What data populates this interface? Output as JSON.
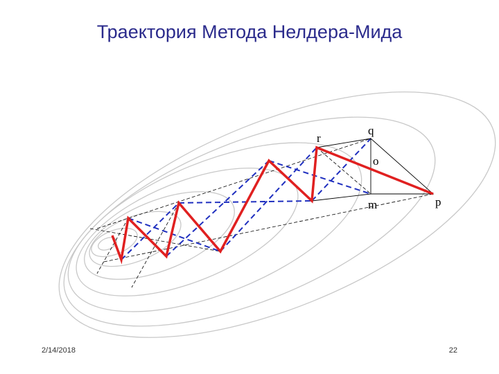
{
  "header": {
    "title": "Траектория Метода Нелдера-Мида"
  },
  "diagram": {
    "labels": {
      "r": "r",
      "q": "q",
      "o": "o",
      "m": "m",
      "p": "p"
    }
  },
  "footer": {
    "date": "2/14/2018",
    "page": "22"
  }
}
